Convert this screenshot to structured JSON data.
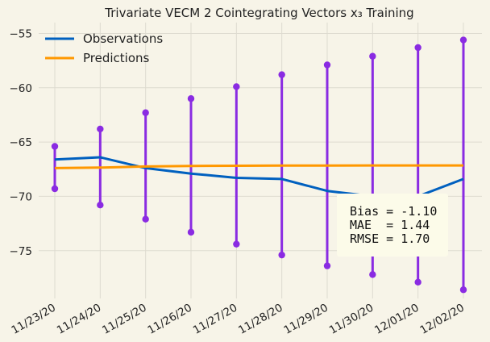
{
  "chart_data": {
    "type": "line",
    "title": "Trivariate VECM 2 Cointegrating Vectors x₃ Training",
    "categories": [
      "11/23/20",
      "11/24/20",
      "11/25/20",
      "11/26/20",
      "11/27/20",
      "11/28/20",
      "11/29/20",
      "11/30/20",
      "12/01/20",
      "12/02/20"
    ],
    "series": [
      {
        "name": "Observations",
        "color": "#0060bf",
        "values": [
          -66.6,
          -66.4,
          -67.4,
          -67.9,
          -68.3,
          -68.4,
          -69.5,
          -70.0,
          -70.0,
          -68.4
        ]
      },
      {
        "name": "Predictions",
        "color": "#ff9800",
        "values": [
          -67.4,
          -67.35,
          -67.25,
          -67.2,
          -67.18,
          -67.17,
          -67.16,
          -67.15,
          -67.15,
          -67.15
        ]
      }
    ],
    "intervals": {
      "color": "#8a2be2",
      "upper": [
        -65.4,
        -63.8,
        -62.3,
        -61.0,
        -59.9,
        -58.8,
        -57.9,
        -57.1,
        -56.3,
        -55.6
      ],
      "lower": [
        -69.3,
        -70.8,
        -72.1,
        -73.3,
        -74.4,
        -75.4,
        -76.4,
        -77.2,
        -77.9,
        -78.6
      ]
    },
    "ylim": [
      -79.4,
      -54.0
    ],
    "yticks": [
      -55,
      -60,
      -65,
      -70,
      -75
    ],
    "ytick_labels": [
      "−55",
      "−60",
      "−65",
      "−70",
      "−75"
    ],
    "legend_position": "upper-left",
    "grid": true,
    "stats_text": [
      "Bias = -1.10",
      "MAE  = 1.44",
      "RMSE = 1.70"
    ]
  }
}
